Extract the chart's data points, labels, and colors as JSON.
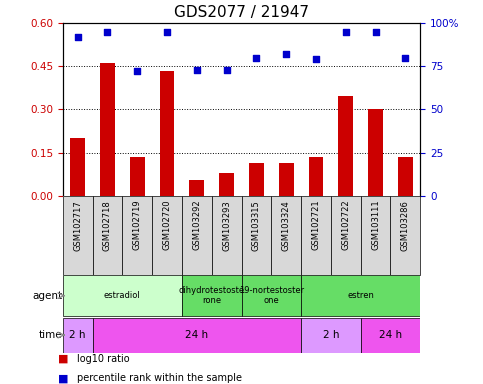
{
  "title": "GDS2077 / 21947",
  "samples": [
    "GSM102717",
    "GSM102718",
    "GSM102719",
    "GSM102720",
    "GSM103292",
    "GSM103293",
    "GSM103315",
    "GSM103324",
    "GSM102721",
    "GSM102722",
    "GSM103111",
    "GSM103286"
  ],
  "log10_ratio": [
    0.2,
    0.46,
    0.135,
    0.435,
    0.055,
    0.08,
    0.115,
    0.115,
    0.135,
    0.345,
    0.3,
    0.135
  ],
  "percentile_rank": [
    92,
    95,
    72,
    95,
    73,
    73,
    80,
    82,
    79,
    95,
    95,
    80
  ],
  "bar_color": "#cc0000",
  "dot_color": "#0000cc",
  "ylim_left": [
    0,
    0.6
  ],
  "ylim_right": [
    0,
    100
  ],
  "yticks_left": [
    0,
    0.15,
    0.3,
    0.45,
    0.6
  ],
  "yticks_right": [
    0,
    25,
    50,
    75,
    100
  ],
  "ytick_labels_right": [
    "0",
    "25",
    "50",
    "75",
    "100%"
  ],
  "hlines": [
    0.15,
    0.3,
    0.45
  ],
  "agent_row": [
    {
      "label": "estradiol",
      "start": 0,
      "end": 4,
      "color": "#ccffcc"
    },
    {
      "label": "dihydrotestoste\nrone",
      "start": 4,
      "end": 6,
      "color": "#66dd66"
    },
    {
      "label": "19-nortestoster\none",
      "start": 6,
      "end": 8,
      "color": "#66dd66"
    },
    {
      "label": "estren",
      "start": 8,
      "end": 12,
      "color": "#66dd66"
    }
  ],
  "time_row": [
    {
      "label": "2 h",
      "start": 0,
      "end": 1,
      "color": "#dd99ff"
    },
    {
      "label": "24 h",
      "start": 1,
      "end": 8,
      "color": "#ee55ee"
    },
    {
      "label": "2 h",
      "start": 8,
      "end": 10,
      "color": "#dd99ff"
    },
    {
      "label": "24 h",
      "start": 10,
      "end": 12,
      "color": "#ee55ee"
    }
  ],
  "legend_red": "log10 ratio",
  "legend_blue": "percentile rank within the sample",
  "title_fontsize": 11,
  "tick_fontsize": 7.5,
  "bar_width": 0.5,
  "sample_fontsize": 6.0,
  "row_label_fontsize": 7.5
}
